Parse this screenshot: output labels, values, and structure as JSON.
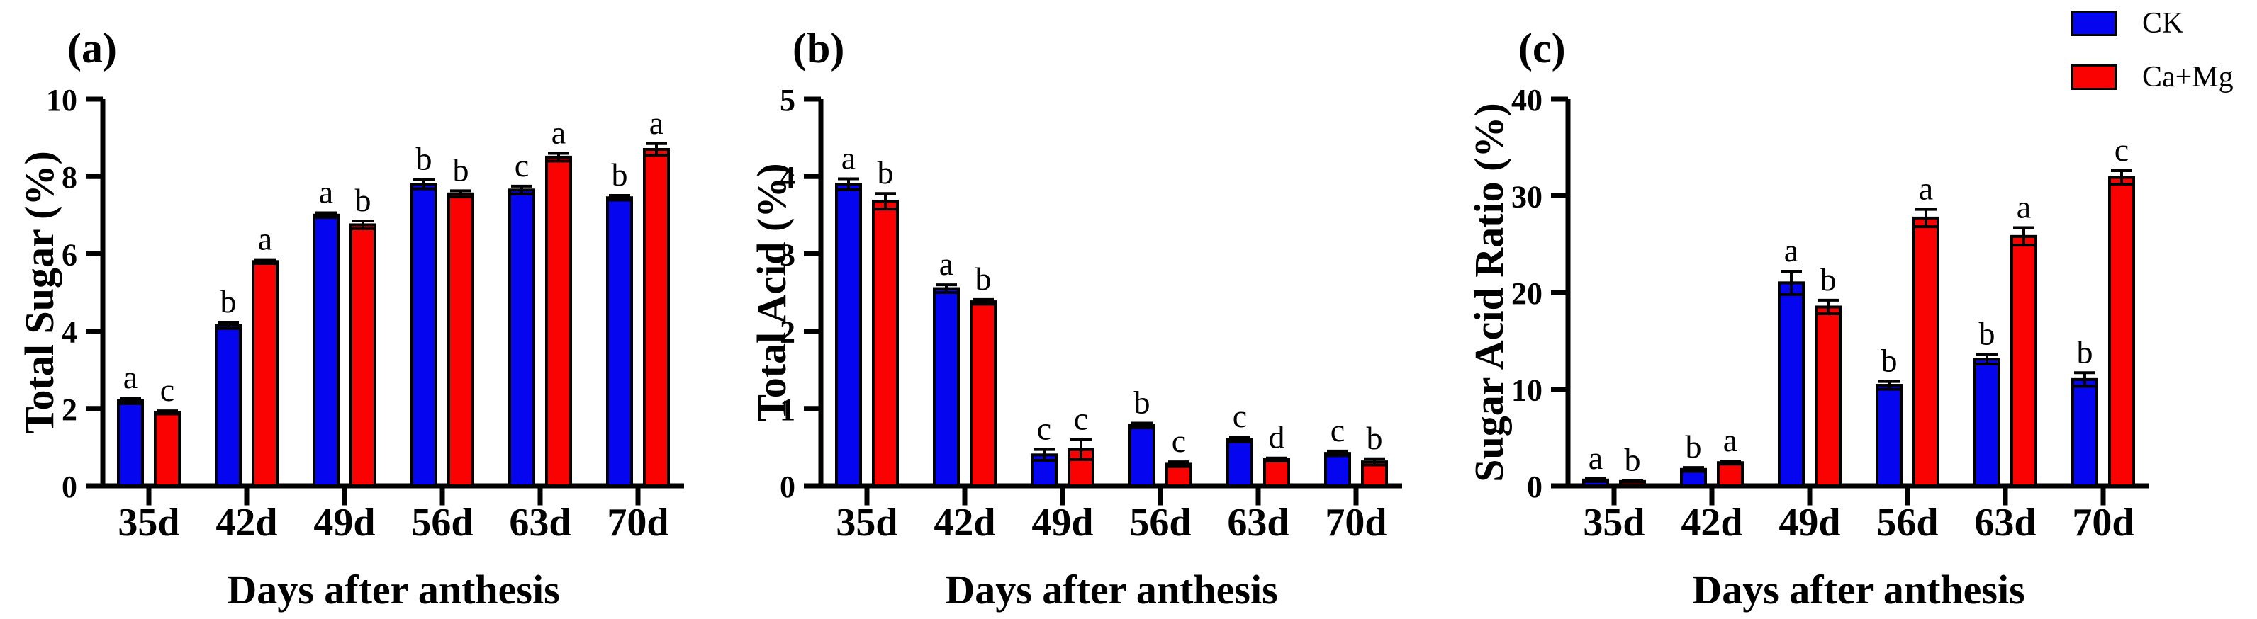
{
  "legend": {
    "position": "top-right",
    "items": [
      {
        "label": "CK",
        "color": "#0505f0"
      },
      {
        "label": "Ca+Mg",
        "color": "#fa0202"
      }
    ]
  },
  "chart_data": [
    {
      "type": "bar",
      "panel_label": "(a)",
      "title": "",
      "ylabel": "Total Sugar (%)",
      "xlabel": "Days after anthesis",
      "categories": [
        "35d",
        "42d",
        "49d",
        "56d",
        "63d",
        "70d"
      ],
      "ylim": [
        0,
        10
      ],
      "yticks": [
        0,
        2,
        4,
        6,
        8,
        10
      ],
      "grid": false,
      "legend_position": "none",
      "series": [
        {
          "name": "CK",
          "color": "#0505f0",
          "values": [
            2.2,
            4.15,
            7.0,
            7.8,
            7.65,
            7.45
          ],
          "errors": [
            0.07,
            0.08,
            0.06,
            0.12,
            0.1,
            0.06
          ],
          "letters": [
            "a",
            "b",
            "a",
            "b",
            "c",
            "b"
          ]
        },
        {
          "name": "Ca+Mg",
          "color": "#fa0202",
          "values": [
            1.9,
            5.8,
            6.75,
            7.55,
            8.5,
            8.7
          ],
          "errors": [
            0.04,
            0.05,
            0.1,
            0.08,
            0.1,
            0.15
          ],
          "letters": [
            "c",
            "a",
            "b",
            "b",
            "a",
            "a"
          ]
        }
      ]
    },
    {
      "type": "bar",
      "panel_label": "(b)",
      "title": "",
      "ylabel": "Total Acid (%)",
      "xlabel": "Days after anthesis",
      "categories": [
        "35d",
        "42d",
        "49d",
        "56d",
        "63d",
        "70d"
      ],
      "ylim": [
        0,
        5
      ],
      "yticks": [
        0,
        1,
        2,
        3,
        4,
        5
      ],
      "grid": false,
      "legend_position": "none",
      "series": [
        {
          "name": "CK",
          "color": "#0505f0",
          "values": [
            3.9,
            2.55,
            0.4,
            0.78,
            0.6,
            0.42
          ],
          "errors": [
            0.07,
            0.05,
            0.07,
            0.03,
            0.03,
            0.03
          ],
          "letters": [
            "a",
            "a",
            "c",
            "b",
            "c",
            "c"
          ]
        },
        {
          "name": "Ca+Mg",
          "color": "#fa0202",
          "values": [
            3.68,
            2.38,
            0.47,
            0.28,
            0.34,
            0.31
          ],
          "errors": [
            0.1,
            0.03,
            0.13,
            0.03,
            0.02,
            0.04
          ],
          "letters": [
            "b",
            "b",
            "c",
            "c",
            "d",
            "b"
          ]
        }
      ]
    },
    {
      "type": "bar",
      "panel_label": "(c)",
      "title": "",
      "ylabel": "Sugar Acid Ratio (%)",
      "xlabel": "Days after anthesis",
      "categories": [
        "35d",
        "42d",
        "49d",
        "56d",
        "63d",
        "70d"
      ],
      "ylim": [
        0,
        40
      ],
      "yticks": [
        0,
        10,
        20,
        30,
        40
      ],
      "grid": false,
      "legend_position": "top-right",
      "series": [
        {
          "name": "CK",
          "color": "#0505f0",
          "values": [
            0.6,
            1.7,
            21.0,
            10.4,
            13.1,
            11.0
          ],
          "errors": [
            0.15,
            0.2,
            1.2,
            0.4,
            0.5,
            0.7
          ],
          "letters": [
            "a",
            "b",
            "a",
            "b",
            "b",
            "b"
          ]
        },
        {
          "name": "Ca+Mg",
          "color": "#fa0202",
          "values": [
            0.45,
            2.4,
            18.5,
            27.7,
            25.8,
            31.9
          ],
          "errors": [
            0.1,
            0.15,
            0.7,
            0.9,
            0.9,
            0.7
          ],
          "letters": [
            "b",
            "a",
            "b",
            "a",
            "a",
            "c"
          ]
        }
      ]
    }
  ]
}
